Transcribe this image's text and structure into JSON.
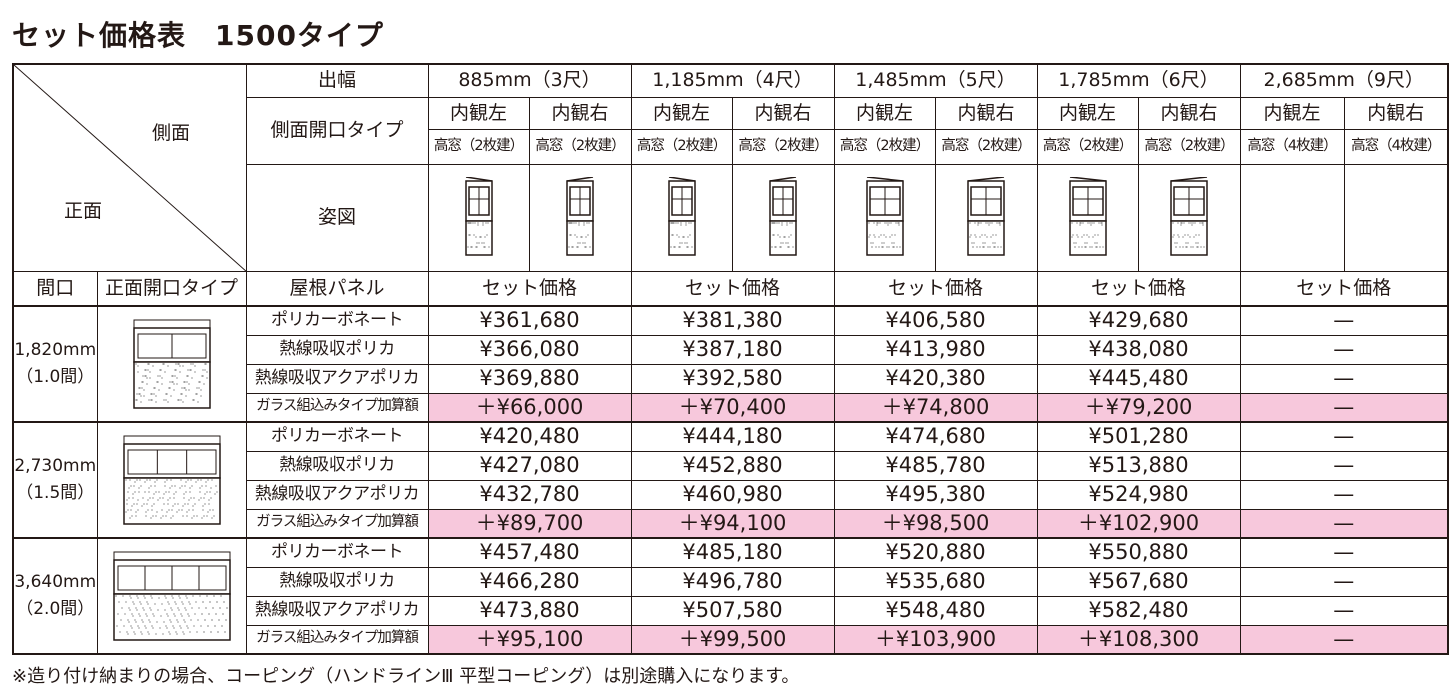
{
  "title": "セット価格表　1500タイプ",
  "header": {
    "corner_side": "側面",
    "corner_front": "正面",
    "depth_label": "出幅",
    "side_type_label": "側面開口タイプ",
    "figure_label": "姿図",
    "frontage_label": "間口",
    "front_type_label": "正面開口タイプ",
    "roof_label": "屋根パネル"
  },
  "widths": [
    {
      "label": "885mm（3尺）",
      "views": [
        "内観左",
        "内観右"
      ],
      "windows": [
        "高窓（2枚建）",
        "高窓（2枚建）"
      ],
      "price_label": "セット価格"
    },
    {
      "label": "1,185mm（4尺）",
      "views": [
        "内観左",
        "内観右"
      ],
      "windows": [
        "高窓（2枚建）",
        "高窓（2枚建）"
      ],
      "price_label": "セット価格"
    },
    {
      "label": "1,485mm（5尺）",
      "views": [
        "内観左",
        "内観右"
      ],
      "windows": [
        "高窓（2枚建）",
        "高窓（2枚建）"
      ],
      "price_label": "セット価格"
    },
    {
      "label": "1,785mm（6尺）",
      "views": [
        "内観左",
        "内観右"
      ],
      "windows": [
        "高窓（2枚建）",
        "高窓（2枚建）"
      ],
      "price_label": "セット価格"
    },
    {
      "label": "2,685mm（9尺）",
      "views": [
        "内観左",
        "内観右"
      ],
      "windows": [
        "高窓（4枚建）",
        "高窓（4枚建）"
      ],
      "price_label": "セット価格"
    }
  ],
  "groups": [
    {
      "frontage": "1,820mm",
      "ken": "（1.0間）",
      "rows": [
        {
          "panel": "ポリカーボネート",
          "prices": [
            "¥361,680",
            "¥381,380",
            "¥406,580",
            "¥429,680",
            "—"
          ]
        },
        {
          "panel": "熱線吸収ポリカ",
          "prices": [
            "¥366,080",
            "¥387,180",
            "¥413,980",
            "¥438,080",
            "—"
          ]
        },
        {
          "panel": "熱線吸収アクアポリカ",
          "prices": [
            "¥369,880",
            "¥392,580",
            "¥420,380",
            "¥445,480",
            "—"
          ]
        },
        {
          "panel": "ガラス組込みタイプ加算額",
          "prices": [
            "＋¥66,000",
            "＋¥70,400",
            "＋¥74,800",
            "＋¥79,200",
            "—"
          ]
        }
      ]
    },
    {
      "frontage": "2,730mm",
      "ken": "（1.5間）",
      "rows": [
        {
          "panel": "ポリカーボネート",
          "prices": [
            "¥420,480",
            "¥444,180",
            "¥474,680",
            "¥501,280",
            "—"
          ]
        },
        {
          "panel": "熱線吸収ポリカ",
          "prices": [
            "¥427,080",
            "¥452,880",
            "¥485,780",
            "¥513,880",
            "—"
          ]
        },
        {
          "panel": "熱線吸収アクアポリカ",
          "prices": [
            "¥432,780",
            "¥460,980",
            "¥495,380",
            "¥524,980",
            "—"
          ]
        },
        {
          "panel": "ガラス組込みタイプ加算額",
          "prices": [
            "＋¥89,700",
            "＋¥94,100",
            "＋¥98,500",
            "＋¥102,900",
            "—"
          ]
        }
      ]
    },
    {
      "frontage": "3,640mm",
      "ken": "（2.0間）",
      "rows": [
        {
          "panel": "ポリカーボネート",
          "prices": [
            "¥457,480",
            "¥485,180",
            "¥520,880",
            "¥550,880",
            "—"
          ]
        },
        {
          "panel": "熱線吸収ポリカ",
          "prices": [
            "¥466,280",
            "¥496,780",
            "¥535,680",
            "¥567,680",
            "—"
          ]
        },
        {
          "panel": "熱線吸収アクアポリカ",
          "prices": [
            "¥473,880",
            "¥507,580",
            "¥548,480",
            "¥582,480",
            "—"
          ]
        },
        {
          "panel": "ガラス組込みタイプ加算額",
          "prices": [
            "＋¥95,100",
            "＋¥99,500",
            "＋¥103,900",
            "＋¥108,300",
            "—"
          ]
        }
      ]
    }
  ],
  "footnote": "※造り付け納まりの場合、コーピング（ハンドラインⅢ 平型コーピング）は別途購入になります。"
}
